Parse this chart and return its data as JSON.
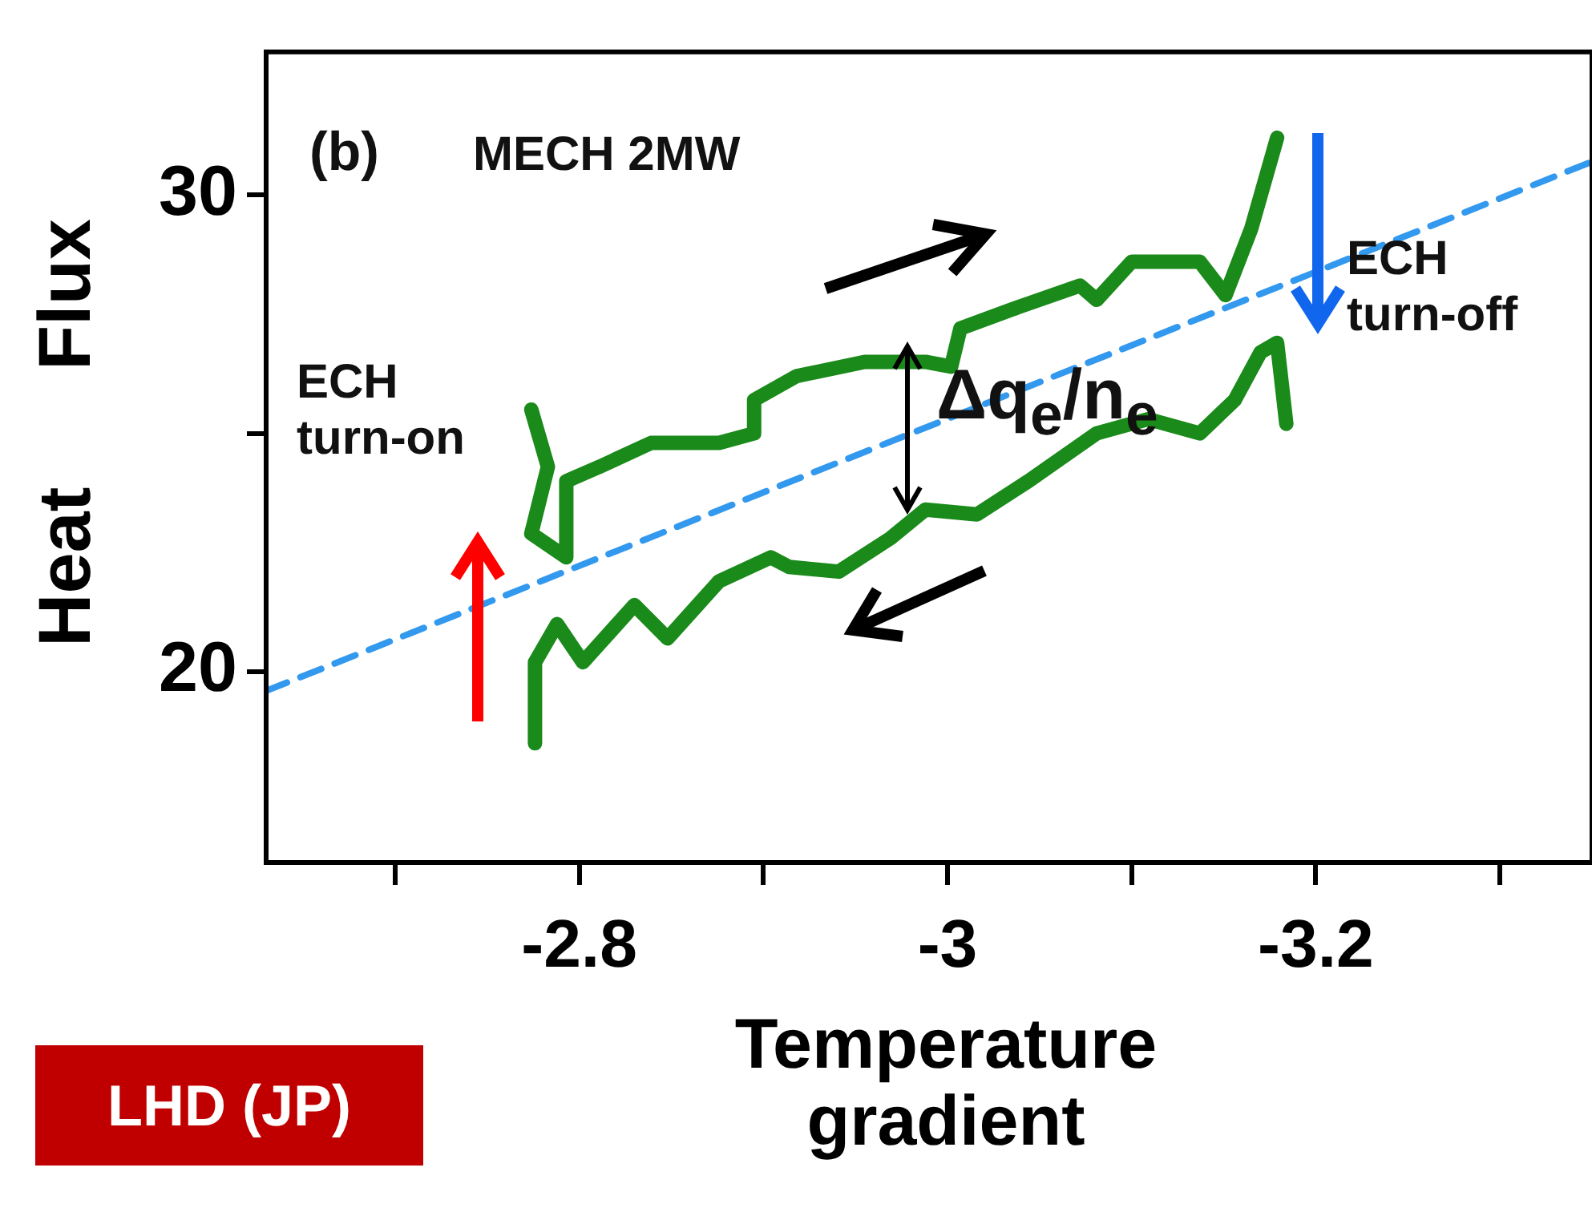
{
  "chart_data": {
    "type": "line",
    "xlabel": "Temperature gradient",
    "ylabel": "Heat Flux",
    "xlim": [
      -2.63,
      -3.35
    ],
    "ylim": [
      16,
      33
    ],
    "xticks": [
      {
        "value": -2.7,
        "label": null
      },
      -2.8,
      {
        "value": -2.9,
        "label": null
      },
      -3,
      {
        "value": -3.1,
        "label": null
      },
      -3.2,
      {
        "value": -3.3,
        "label": null
      }
    ],
    "yticks": [
      20,
      {
        "value": 25,
        "label": null
      },
      30
    ],
    "marker": "none",
    "annotations": [
      "(b)",
      "MECH 2MW",
      "ECH turn-on",
      "ECH turn-off",
      "Δq$_{e}$/n$_{e}$",
      "LHD (JP)"
    ],
    "series": [
      {
        "color": "#1a8a1a",
        "x": [
          -2.774,
          -2.783,
          -2.774,
          -2.793,
          -2.793,
          -2.811,
          -2.839,
          -2.876,
          -2.895,
          -2.895,
          -2.918,
          -2.955,
          -2.988,
          -3.002,
          -3.007,
          -3.035,
          -3.072,
          -3.081,
          -3.1,
          -3.137,
          -3.151,
          -3.165,
          -3.179
        ],
        "values": [
          25.5,
          24.3,
          22.9,
          22.4,
          24,
          24.3,
          24.8,
          24.8,
          25,
          25.7,
          26.2,
          26.5,
          26.5,
          26.4,
          27.2,
          27.6,
          28.1,
          27.8,
          28.6,
          28.6,
          27.9,
          29.3,
          31.2
        ]
      },
      {
        "color": "#1a8a1a",
        "x": [
          -3.184,
          -3.179,
          -3.17,
          -3.156,
          -3.137,
          -3.109,
          -3.081,
          -3.044,
          -3.016,
          -2.988,
          -2.969,
          -2.941,
          -2.914,
          -2.904,
          -2.876,
          -2.848,
          -2.83,
          -2.802,
          -2.788,
          -2.776,
          -2.776
        ],
        "values": [
          25.2,
          26.9,
          26.7,
          25.7,
          25,
          25.3,
          25,
          24,
          23.3,
          23.4,
          22.8,
          22.1,
          22.2,
          22.4,
          21.9,
          20.7,
          21.4,
          20.2,
          21,
          20.2,
          18.5
        ]
      },
      {
        "color": "#3399ee",
        "line_style": "dashed",
        "x": [
          -2.63,
          -3.35
        ],
        "values": [
          19.6,
          30.7
        ]
      }
    ]
  }
}
